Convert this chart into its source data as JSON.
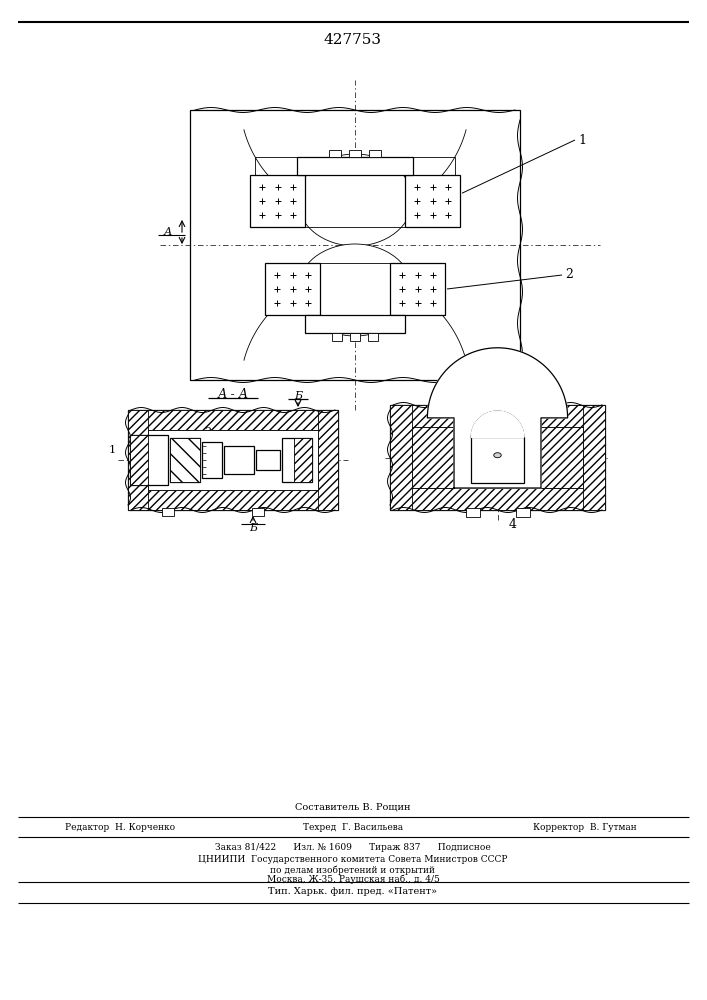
{
  "title_number": "427753",
  "bg": "#ffffff",
  "lc": "#000000",
  "footer_line0": "Составитель В. Рощин",
  "footer_line1a": "Редактор  Н. Корченко",
  "footer_line1b": "Техред  Г. Васильева",
  "footer_line1c": "Корректор  В. Гутман",
  "footer_line2": "Заказ 81/422      Изл. № 1609      Тираж 837      Подписное",
  "footer_line3": "ЦНИИПИ  Государственного комитета Совета Министров СССР",
  "footer_line4": "по делам изобретений и открытий",
  "footer_line5": "Москва, Ж-35, Раушская наб., д. 4/5",
  "footer_line6": "Тип. Харьк. фил. пред. «Патент»"
}
